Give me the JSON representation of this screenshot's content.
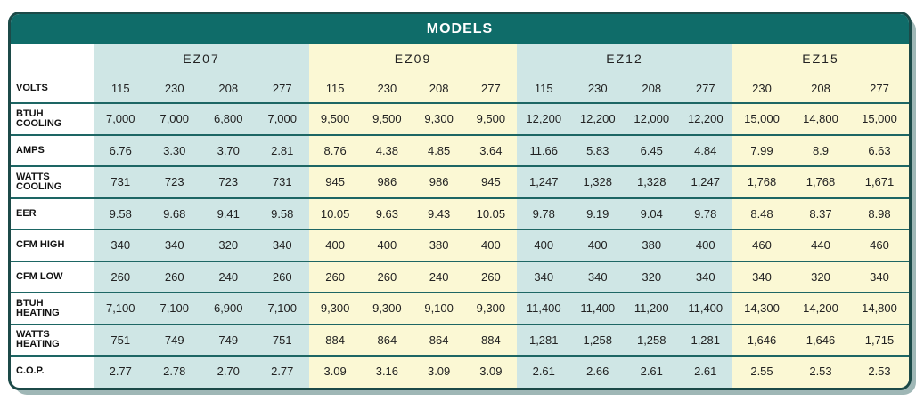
{
  "header": {
    "title": "MODELS"
  },
  "table": {
    "volts_label": "VOLTS",
    "models": [
      {
        "name": "EZ07",
        "volts": [
          "115",
          "230",
          "208",
          "277"
        ]
      },
      {
        "name": "EZ09",
        "volts": [
          "115",
          "230",
          "208",
          "277"
        ]
      },
      {
        "name": "EZ12",
        "volts": [
          "115",
          "230",
          "208",
          "277"
        ]
      },
      {
        "name": "EZ15",
        "volts": [
          "230",
          "208",
          "277"
        ]
      }
    ],
    "rows": [
      {
        "label": "BTUH\nCOOLING",
        "values": [
          "7,000",
          "7,000",
          "6,800",
          "7,000",
          "9,500",
          "9,500",
          "9,300",
          "9,500",
          "12,200",
          "12,200",
          "12,000",
          "12,200",
          "15,000",
          "14,800",
          "15,000"
        ]
      },
      {
        "label": "AMPS",
        "values": [
          "6.76",
          "3.30",
          "3.70",
          "2.81",
          "8.76",
          "4.38",
          "4.85",
          "3.64",
          "11.66",
          "5.83",
          "6.45",
          "4.84",
          "7.99",
          "8.9",
          "6.63"
        ]
      },
      {
        "label": "WATTS\nCOOLING",
        "values": [
          "731",
          "723",
          "723",
          "731",
          "945",
          "986",
          "986",
          "945",
          "1,247",
          "1,328",
          "1,328",
          "1,247",
          "1,768",
          "1,768",
          "1,671"
        ]
      },
      {
        "label": "EER",
        "values": [
          "9.58",
          "9.68",
          "9.41",
          "9.58",
          "10.05",
          "9.63",
          "9.43",
          "10.05",
          "9.78",
          "9.19",
          "9.04",
          "9.78",
          "8.48",
          "8.37",
          "8.98"
        ]
      },
      {
        "label": "CFM HIGH",
        "values": [
          "340",
          "340",
          "320",
          "340",
          "400",
          "400",
          "380",
          "400",
          "400",
          "400",
          "380",
          "400",
          "460",
          "440",
          "460"
        ]
      },
      {
        "label": "CFM LOW",
        "values": [
          "260",
          "260",
          "240",
          "260",
          "260",
          "260",
          "240",
          "260",
          "340",
          "340",
          "320",
          "340",
          "340",
          "320",
          "340"
        ]
      },
      {
        "label": "BTUH\nHEATING",
        "values": [
          "7,100",
          "7,100",
          "6,900",
          "7,100",
          "9,300",
          "9,300",
          "9,100",
          "9,300",
          "11,400",
          "11,400",
          "11,200",
          "11,400",
          "14,300",
          "14,200",
          "14,800"
        ]
      },
      {
        "label": "WATTS\nHEATING",
        "values": [
          "751",
          "749",
          "749",
          "751",
          "884",
          "864",
          "864",
          "884",
          "1,281",
          "1,258",
          "1,258",
          "1,281",
          "1,646",
          "1,646",
          "1,715"
        ]
      },
      {
        "label": "C.O.P.",
        "values": [
          "2.77",
          "2.78",
          "2.70",
          "2.77",
          "3.09",
          "3.16",
          "3.09",
          "3.09",
          "2.61",
          "2.66",
          "2.61",
          "2.61",
          "2.55",
          "2.53",
          "2.53"
        ]
      }
    ]
  }
}
